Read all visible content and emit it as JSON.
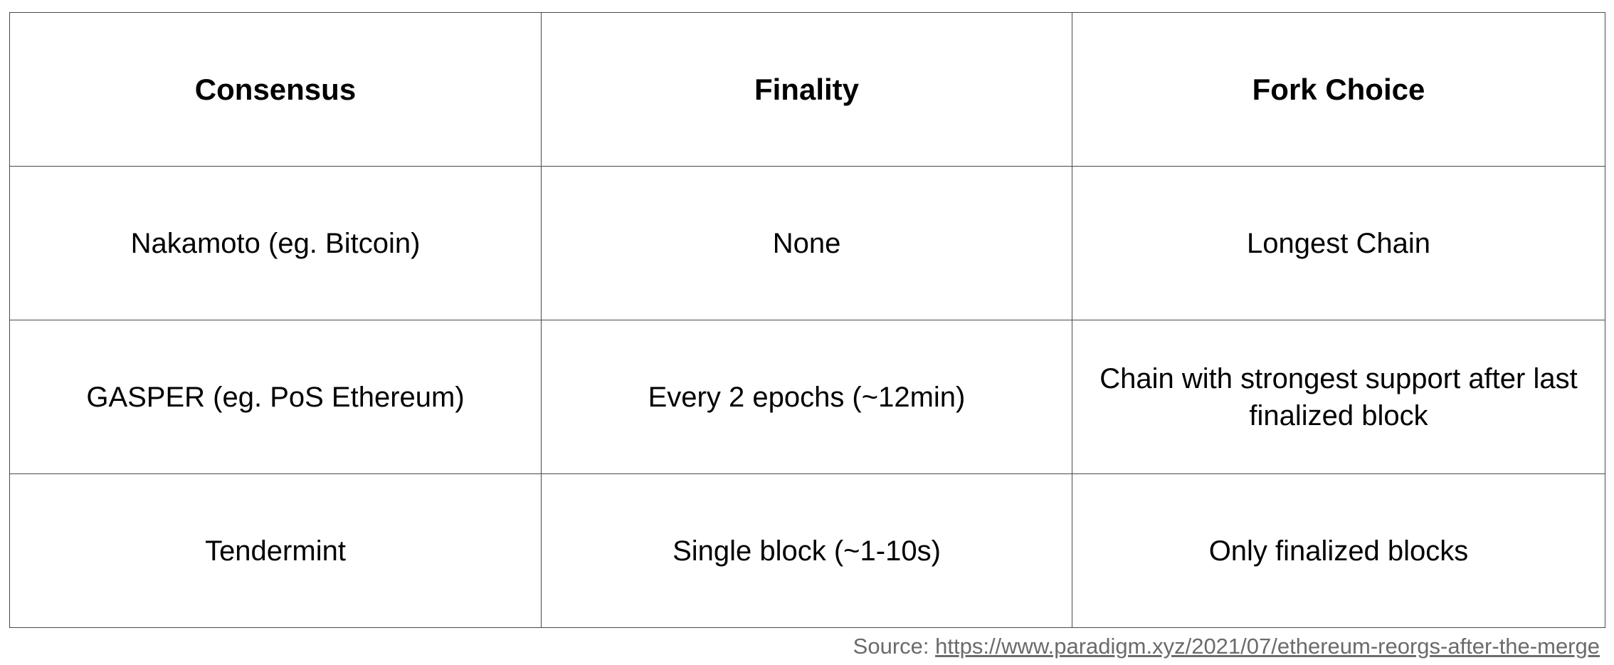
{
  "table": {
    "headers": [
      "Consensus",
      "Finality",
      "Fork Choice"
    ],
    "rows": [
      [
        "Nakamoto (eg. Bitcoin)",
        "None",
        "Longest Chain"
      ],
      [
        "GASPER (eg. PoS Ethereum)",
        "Every 2 epochs (~12min)",
        "Chain with strongest support after last finalized block"
      ],
      [
        "Tendermint",
        "Single block (~1-10s)",
        "Only finalized blocks"
      ]
    ]
  },
  "source": {
    "prefix": "Source: ",
    "link_text": "https://www.paradigm.xyz/2021/07/ethereum-reorgs-after-the-merge"
  }
}
